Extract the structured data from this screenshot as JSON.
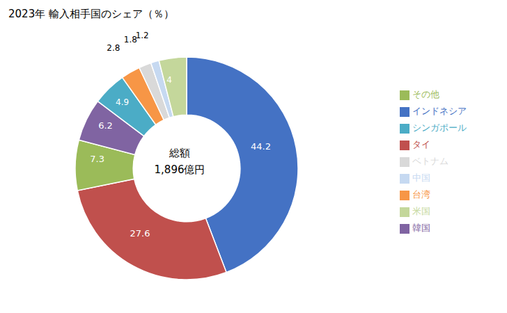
{
  "chart_data": {
    "type": "pie",
    "title": "2023年 輸入相手国のシェア（％）",
    "annotations": [
      "総額",
      "1,896億円"
    ],
    "categories": [
      "インドネシア",
      "タイ",
      "その他",
      "韓国",
      "シンガポール",
      "台湾",
      "ベトナム",
      "中国",
      "米国"
    ],
    "values": [
      44.2,
      27.6,
      7.3,
      6.2,
      4.9,
      2.8,
      1.8,
      1.2,
      4.0
    ],
    "colors": [
      "#4472C4",
      "#C0504D",
      "#9BBB59",
      "#8064A2",
      "#4BACC6",
      "#F79646",
      "#D9D9D9",
      "#C6D9F1",
      "#C4D79B"
    ],
    "data_labels": true,
    "legend": "right"
  }
}
